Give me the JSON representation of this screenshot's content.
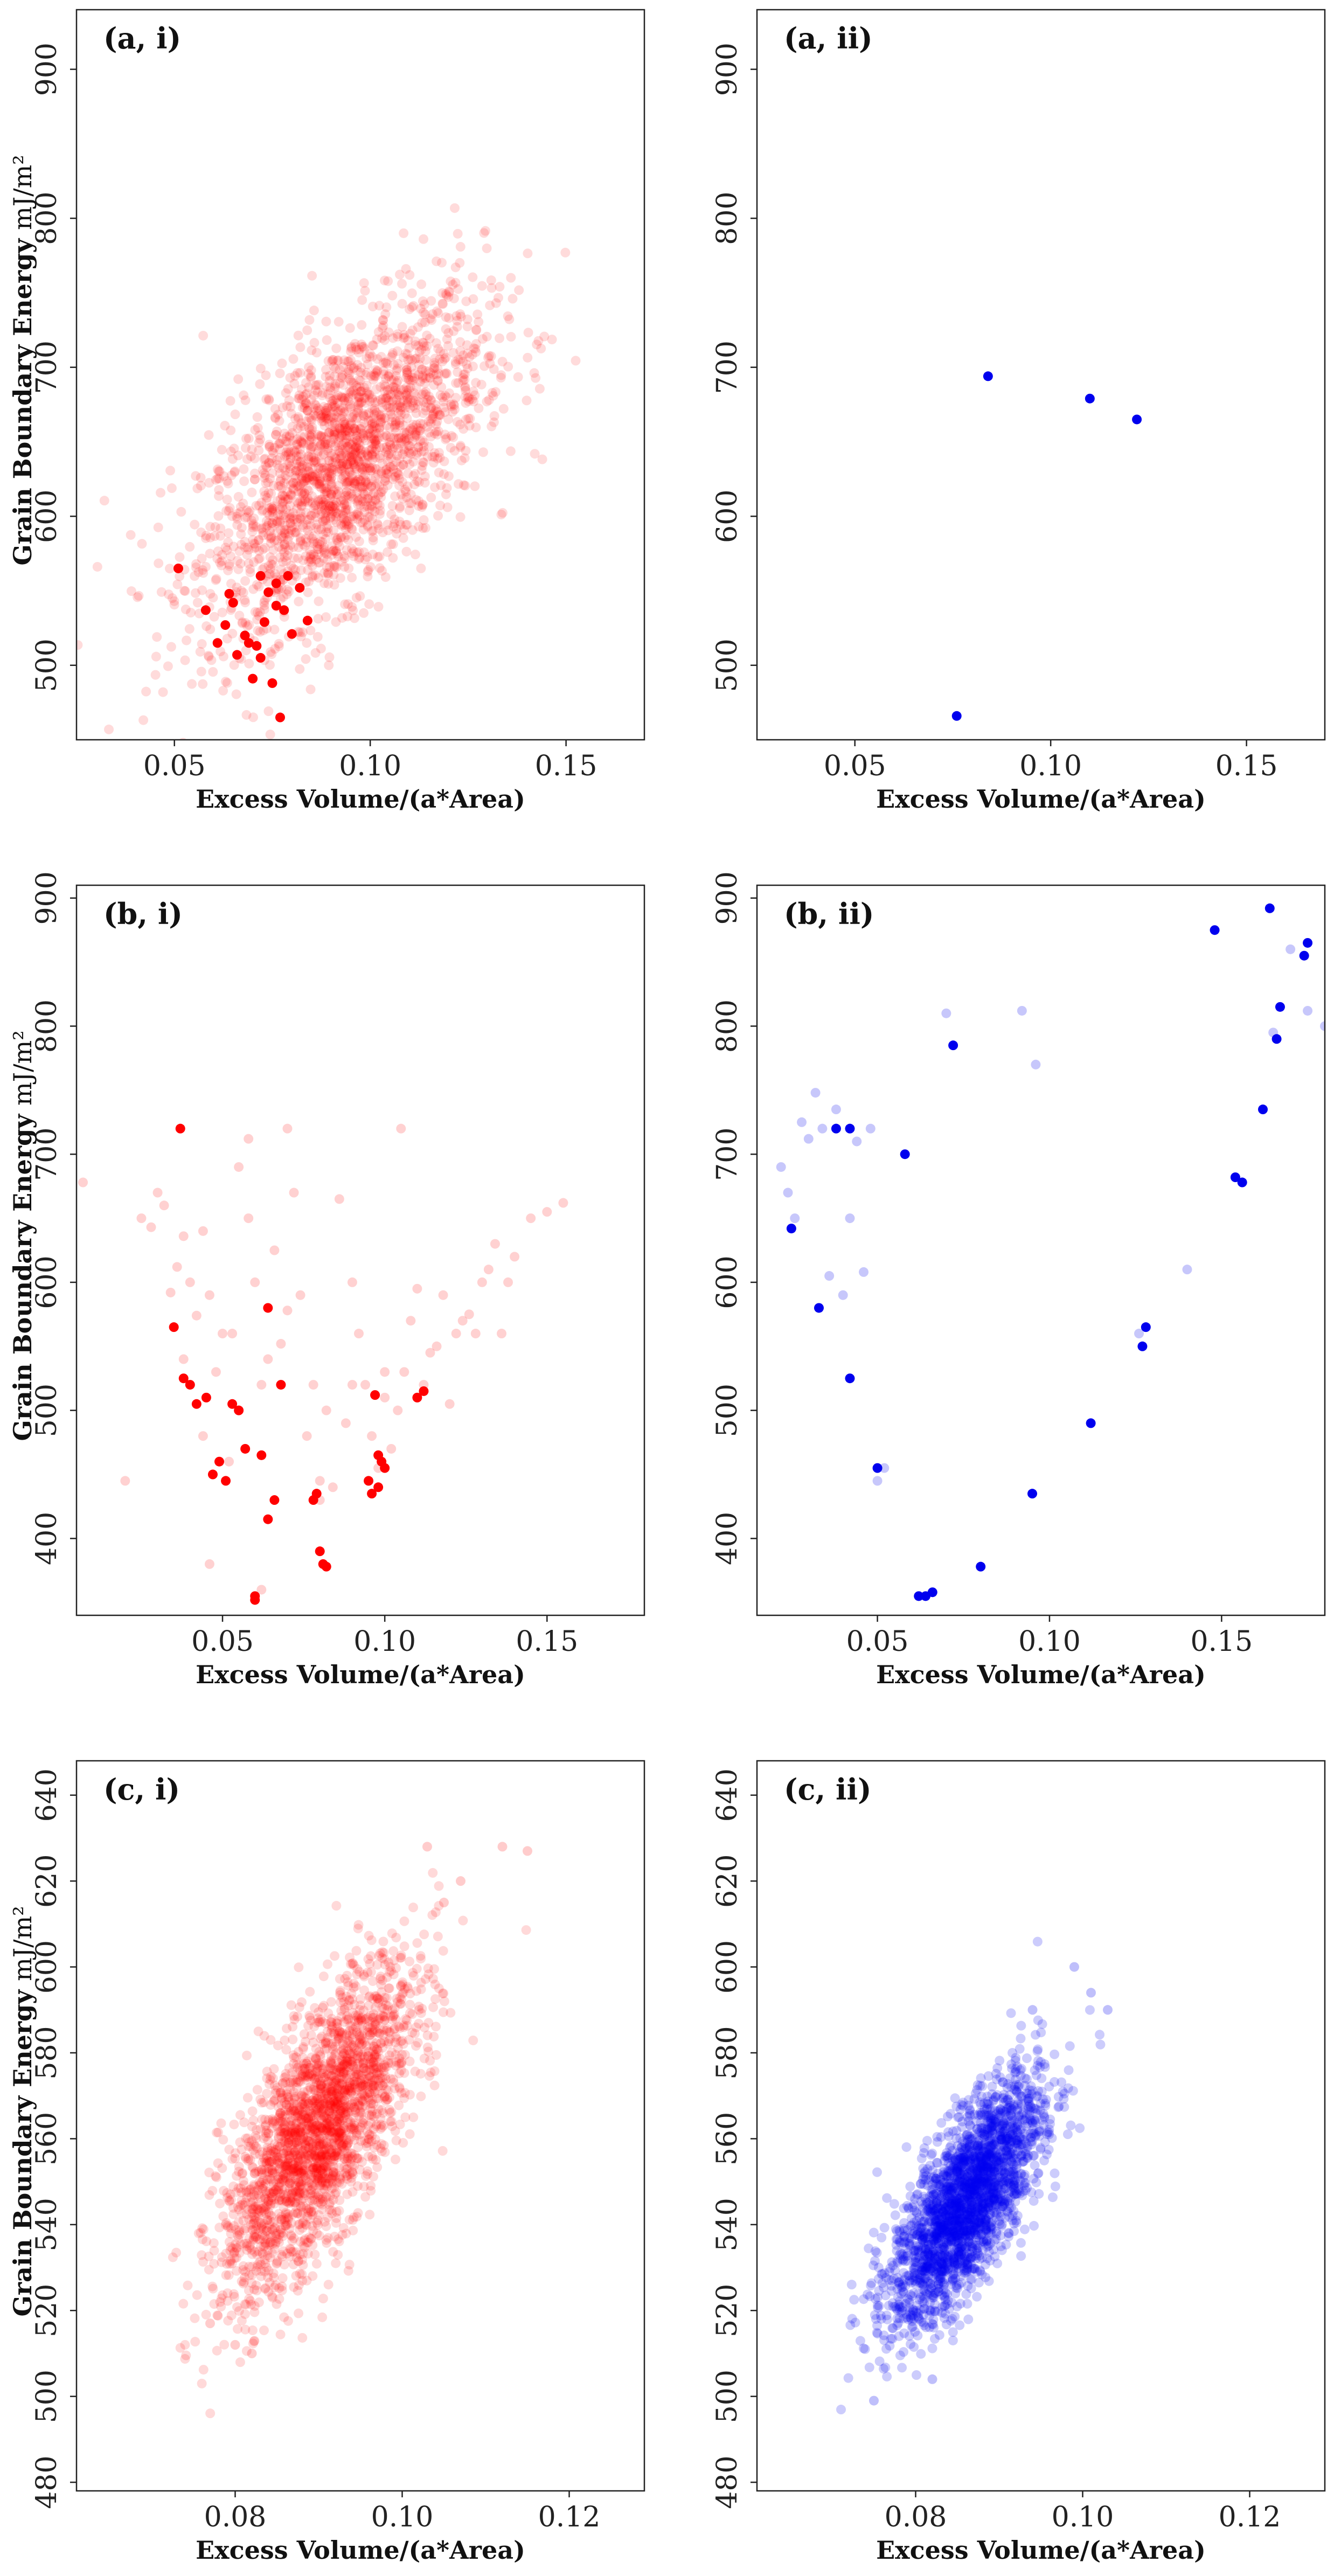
{
  "chart_data": [
    {
      "type": "scatter",
      "panel_label": "(a, i)",
      "xlabel": "Excess Volume/(a*Area)",
      "ylabel_bold": "Grain Boundary Energy",
      "ylabel_unit": "mJ/m²",
      "xlim": [
        0.025,
        0.17
      ],
      "ylim": [
        450,
        940
      ],
      "xticks": [
        "0.05",
        "0.10",
        "0.15"
      ],
      "xtick_values": [
        0.05,
        0.1,
        0.15
      ],
      "yticks": [
        "500",
        "600",
        "700",
        "800",
        "900"
      ],
      "ytick_values": [
        500,
        600,
        700,
        800,
        900
      ],
      "color": "#ff0000",
      "cloud": {
        "n": 2200,
        "cx": 0.093,
        "cy": 635,
        "sx": 0.018,
        "sy": 55,
        "rho": 0.62,
        "alpha": 0.14
      },
      "series": [
        {
          "name": "highlighted",
          "alpha": 1.0,
          "x": [
            0.051,
            0.058,
            0.061,
            0.063,
            0.065,
            0.066,
            0.068,
            0.07,
            0.071,
            0.072,
            0.073,
            0.074,
            0.075,
            0.076,
            0.077,
            0.078,
            0.079,
            0.08,
            0.082,
            0.084,
            0.064,
            0.069,
            0.072,
            0.076
          ],
          "y": [
            565,
            537,
            515,
            527,
            542,
            507,
            520,
            491,
            513,
            505,
            529,
            549,
            488,
            555,
            465,
            537,
            560,
            521,
            552,
            530,
            548,
            515,
            560,
            540
          ]
        }
      ]
    },
    {
      "type": "scatter",
      "panel_label": "(a, ii)",
      "xlabel": "Excess Volume/(a*Area)",
      "xlim": [
        0.025,
        0.17
      ],
      "ylim": [
        450,
        940
      ],
      "xticks": [
        "0.05",
        "0.10",
        "0.15"
      ],
      "xtick_values": [
        0.05,
        0.1,
        0.15
      ],
      "yticks": [
        "500",
        "600",
        "700",
        "800",
        "900"
      ],
      "ytick_values": [
        500,
        600,
        700,
        800,
        900
      ],
      "color": "#0000ee",
      "series": [
        {
          "name": "points",
          "alpha": 1.0,
          "x": [
            0.076,
            0.084,
            0.11,
            0.122
          ],
          "y": [
            466,
            694,
            679,
            665
          ]
        }
      ]
    },
    {
      "type": "scatter",
      "panel_label": "(b, i)",
      "xlabel": "Excess Volume/(a*Area)",
      "ylabel_bold": "Grain Boundary Energy",
      "ylabel_unit": "mJ/m²",
      "xlim": [
        0.005,
        0.18
      ],
      "ylim": [
        340,
        910
      ],
      "xticks": [
        "0.05",
        "0.10",
        "0.15"
      ],
      "xtick_values": [
        0.05,
        0.1,
        0.15
      ],
      "yticks": [
        "400",
        "500",
        "600",
        "700",
        "800",
        "900"
      ],
      "ytick_values": [
        400,
        500,
        600,
        700,
        800,
        900
      ],
      "color": "#ff0000",
      "series": [
        {
          "name": "faint",
          "alpha": 0.18,
          "x": [
            0.007,
            0.028,
            0.03,
            0.032,
            0.034,
            0.036,
            0.038,
            0.04,
            0.042,
            0.044,
            0.046,
            0.048,
            0.05,
            0.052,
            0.055,
            0.058,
            0.06,
            0.062,
            0.064,
            0.066,
            0.068,
            0.07,
            0.072,
            0.074,
            0.076,
            0.078,
            0.08,
            0.082,
            0.084,
            0.086,
            0.088,
            0.09,
            0.092,
            0.094,
            0.096,
            0.098,
            0.1,
            0.102,
            0.104,
            0.106,
            0.108,
            0.11,
            0.112,
            0.114,
            0.116,
            0.118,
            0.12,
            0.122,
            0.124,
            0.126,
            0.128,
            0.13,
            0.132,
            0.134,
            0.136,
            0.138,
            0.14,
            0.145,
            0.15,
            0.155,
            0.105,
            0.07,
            0.058,
            0.046,
            0.038,
            0.02,
            0.025,
            0.044,
            0.053,
            0.062,
            0.08,
            0.09,
            0.1
          ],
          "y": [
            678,
            643,
            670,
            660,
            592,
            612,
            636,
            600,
            574,
            640,
            590,
            530,
            560,
            460,
            690,
            712,
            600,
            520,
            540,
            625,
            552,
            578,
            670,
            590,
            480,
            520,
            445,
            500,
            440,
            665,
            490,
            600,
            560,
            520,
            480,
            455,
            510,
            470,
            500,
            530,
            570,
            595,
            520,
            545,
            550,
            590,
            505,
            560,
            570,
            575,
            560,
            600,
            610,
            630,
            560,
            600,
            620,
            650,
            655,
            662,
            720,
            720,
            650,
            380,
            540,
            445,
            650,
            480,
            560,
            360,
            430,
            520,
            530
          ]
        },
        {
          "name": "solid",
          "alpha": 1.0,
          "x": [
            0.035,
            0.038,
            0.04,
            0.042,
            0.045,
            0.047,
            0.049,
            0.051,
            0.053,
            0.055,
            0.057,
            0.06,
            0.062,
            0.064,
            0.066,
            0.068,
            0.078,
            0.08,
            0.082,
            0.095,
            0.096,
            0.097,
            0.098,
            0.099,
            0.1,
            0.11,
            0.112,
            0.037,
            0.06,
            0.064,
            0.079,
            0.081,
            0.098
          ],
          "y": [
            565,
            525,
            520,
            505,
            510,
            450,
            460,
            445,
            505,
            500,
            470,
            352,
            465,
            415,
            430,
            520,
            430,
            390,
            378,
            445,
            435,
            512,
            465,
            460,
            455,
            510,
            515,
            720,
            355,
            580,
            435,
            380,
            440
          ]
        }
      ]
    },
    {
      "type": "scatter",
      "panel_label": "(b, ii)",
      "xlabel": "Excess Volume/(a*Area)",
      "xlim": [
        0.015,
        0.18
      ],
      "ylim": [
        340,
        910
      ],
      "xticks": [
        "0.05",
        "0.10",
        "0.15"
      ],
      "xtick_values": [
        0.05,
        0.1,
        0.15
      ],
      "yticks": [
        "400",
        "500",
        "600",
        "700",
        "800",
        "900"
      ],
      "ytick_values": [
        400,
        500,
        600,
        700,
        800,
        900
      ],
      "color": "#0000ee",
      "series": [
        {
          "name": "faint",
          "alpha": 0.22,
          "x": [
            0.022,
            0.024,
            0.026,
            0.028,
            0.03,
            0.032,
            0.034,
            0.036,
            0.038,
            0.04,
            0.042,
            0.044,
            0.046,
            0.048,
            0.05,
            0.052,
            0.07,
            0.092,
            0.096,
            0.126,
            0.14,
            0.17,
            0.175,
            0.18,
            0.165
          ],
          "y": [
            690,
            670,
            650,
            725,
            712,
            748,
            720,
            605,
            735,
            590,
            650,
            710,
            608,
            720,
            445,
            455,
            810,
            812,
            770,
            560,
            610,
            860,
            812,
            800,
            795
          ]
        },
        {
          "name": "solid",
          "alpha": 1.0,
          "x": [
            0.025,
            0.033,
            0.038,
            0.042,
            0.042,
            0.05,
            0.058,
            0.062,
            0.064,
            0.066,
            0.072,
            0.08,
            0.095,
            0.112,
            0.127,
            0.128,
            0.148,
            0.162,
            0.164,
            0.166,
            0.167,
            0.156,
            0.154,
            0.174,
            0.175
          ],
          "y": [
            642,
            580,
            720,
            525,
            720,
            455,
            700,
            355,
            355,
            358,
            785,
            378,
            435,
            490,
            550,
            565,
            875,
            735,
            892,
            790,
            815,
            678,
            682,
            855,
            865
          ]
        }
      ]
    },
    {
      "type": "scatter",
      "panel_label": "(c, i)",
      "xlabel": "Excess Volume/(a*Area)",
      "ylabel_bold": "Grain Boundary Energy",
      "ylabel_unit": "mJ/m²",
      "xlim": [
        0.061,
        0.129
      ],
      "ylim": [
        478,
        648
      ],
      "xticks": [
        "0.08",
        "0.10",
        "0.12"
      ],
      "xtick_values": [
        0.08,
        0.1,
        0.12
      ],
      "yticks": [
        "480",
        "500",
        "520",
        "540",
        "560",
        "580",
        "600",
        "620",
        "640"
      ],
      "ytick_values": [
        480,
        500,
        520,
        540,
        560,
        580,
        600,
        620,
        640
      ],
      "color": "#ff0000",
      "cloud": {
        "n": 2400,
        "cx": 0.09,
        "cy": 562,
        "sx": 0.0058,
        "sy": 19,
        "rho": 0.72,
        "alpha": 0.15
      },
      "series": [
        {
          "name": "outliers",
          "alpha": 0.2,
          "x": [
            0.103,
            0.112,
            0.115,
            0.107,
            0.105,
            0.077,
            0.08,
            0.082
          ],
          "y": [
            628,
            628,
            627,
            620,
            615,
            517,
            512,
            510
          ]
        }
      ]
    },
    {
      "type": "scatter",
      "panel_label": "(c, ii)",
      "xlabel": "Excess Volume/(a*Area)",
      "xlim": [
        0.061,
        0.129
      ],
      "ylim": [
        478,
        648
      ],
      "xticks": [
        "0.08",
        "0.10",
        "0.12"
      ],
      "xtick_values": [
        0.08,
        0.1,
        0.12
      ],
      "yticks": [
        "480",
        "500",
        "520",
        "540",
        "560",
        "580",
        "600",
        "620",
        "640"
      ],
      "ytick_values": [
        480,
        500,
        520,
        540,
        560,
        580,
        600,
        620,
        640
      ],
      "color": "#0000ee",
      "cloud": {
        "n": 2400,
        "cx": 0.086,
        "cy": 545,
        "sx": 0.0045,
        "sy": 14,
        "rho": 0.72,
        "alpha": 0.2
      },
      "series": [
        {
          "name": "outliers",
          "alpha": 0.25,
          "x": [
            0.099,
            0.101,
            0.103,
            0.075,
            0.082,
            0.094
          ],
          "y": [
            600,
            594,
            590,
            499,
            504,
            590
          ]
        }
      ]
    }
  ]
}
